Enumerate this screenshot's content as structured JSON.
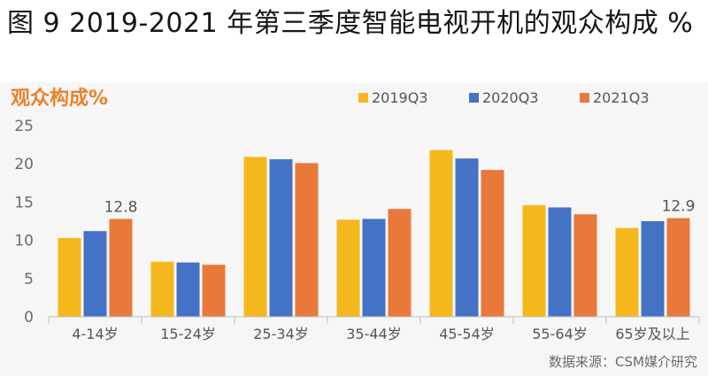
{
  "figure_title": "图 9 2019-2021 年第三季度智能电视开机的观众构成 %",
  "source_note": "数据来源：CSM媒介研究",
  "colors": {
    "2019Q3": "#f5b81c",
    "2020Q3": "#4472c4",
    "2021Q3": "#e8793a",
    "heading": "#e8822c"
  },
  "chart_data": {
    "type": "bar",
    "title": "观众构成%",
    "categories": [
      "4-14岁",
      "15-24岁",
      "25-34岁",
      "35-44岁",
      "45-54岁",
      "55-64岁",
      "65岁及以上"
    ],
    "series": [
      {
        "name": "2019Q3",
        "values": [
          10.3,
          7.2,
          20.9,
          12.7,
          21.8,
          14.6,
          11.6
        ]
      },
      {
        "name": "2020Q3",
        "values": [
          11.2,
          7.1,
          20.6,
          12.8,
          20.7,
          14.3,
          12.5
        ]
      },
      {
        "name": "2021Q3",
        "values": [
          12.8,
          6.8,
          20.1,
          14.1,
          19.2,
          13.4,
          12.9
        ]
      }
    ],
    "data_labels": [
      {
        "category": "4-14岁",
        "series": "2021Q3",
        "text": "12.8"
      },
      {
        "category": "65岁及以上",
        "series": "2021Q3",
        "text": "12.9"
      }
    ],
    "yticks": [
      0,
      5,
      10,
      15,
      20,
      25
    ],
    "ylim": [
      0,
      25
    ],
    "xlabel": "",
    "ylabel": "",
    "grid": false,
    "legend_position": "top-right"
  }
}
